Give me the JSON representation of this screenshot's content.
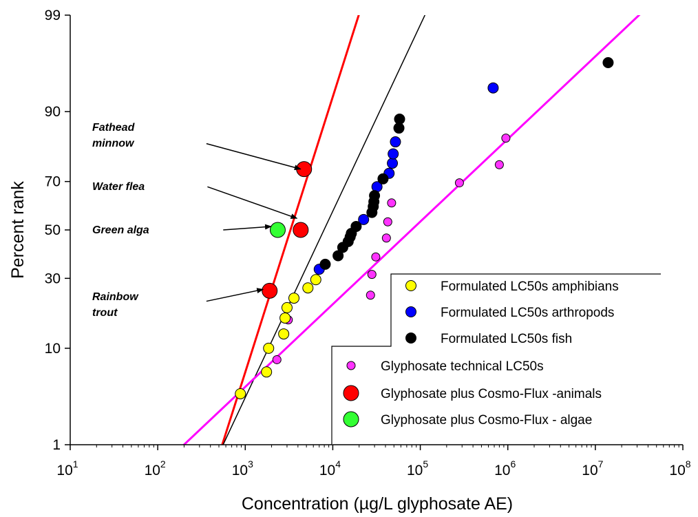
{
  "chart_data": {
    "type": "scatter",
    "xlabel": "Concentration (µg/L glyphosate AE)",
    "ylabel": "Percent rank",
    "xscale": "log",
    "yscale": "probit",
    "xlim": [
      10,
      100000000
    ],
    "ylim": [
      1,
      99
    ],
    "x_ticks": [
      {
        "value": 10,
        "base": "10",
        "exp": "1"
      },
      {
        "value": 100,
        "base": "10",
        "exp": "2"
      },
      {
        "value": 1000,
        "base": "10",
        "exp": "3"
      },
      {
        "value": 10000,
        "base": "10",
        "exp": "4"
      },
      {
        "value": 100000,
        "base": "10",
        "exp": "5"
      },
      {
        "value": 1000000,
        "base": "10",
        "exp": "6"
      },
      {
        "value": 10000000,
        "base": "10",
        "exp": "7"
      },
      {
        "value": 100000000,
        "base": "10",
        "exp": "8"
      }
    ],
    "y_ticks": [
      {
        "value": 1,
        "label": "1"
      },
      {
        "value": 10,
        "label": "10"
      },
      {
        "value": 30,
        "label": "30"
      },
      {
        "value": 50,
        "label": "50"
      },
      {
        "value": 70,
        "label": "70"
      },
      {
        "value": 90,
        "label": "90"
      },
      {
        "value": 99,
        "label": "99"
      }
    ],
    "grid": false,
    "legend_position": "bottom-right",
    "series": [
      {
        "name": "Formulated LC50s amphibians",
        "color": "#ffff00",
        "marker": "small",
        "points": [
          [
            880,
            3.8
          ],
          [
            1750,
            6.2
          ],
          [
            1850,
            10.0
          ],
          [
            2750,
            13.0
          ],
          [
            2850,
            17.0
          ],
          [
            3000,
            20.0
          ],
          [
            3600,
            23.0
          ],
          [
            5200,
            26.5
          ],
          [
            6400,
            29.5
          ]
        ]
      },
      {
        "name": "Formulated LC50s arthropods",
        "color": "#0000ff",
        "marker": "small",
        "points": [
          [
            7000,
            33.5
          ],
          [
            22500,
            54.5
          ],
          [
            32000,
            68.0
          ],
          [
            44000,
            73.0
          ],
          [
            48000,
            76.5
          ],
          [
            49000,
            79.5
          ],
          [
            52000,
            83.0
          ],
          [
            680000,
            93.8
          ]
        ]
      },
      {
        "name": "Formulated LC50s fish",
        "color": "#000000",
        "marker": "small",
        "points": [
          [
            8200,
            35.5
          ],
          [
            11500,
            39.0
          ],
          [
            13000,
            42.5
          ],
          [
            15000,
            45.0
          ],
          [
            15800,
            47.0
          ],
          [
            16300,
            48.5
          ],
          [
            18500,
            51.5
          ],
          [
            28000,
            57.5
          ],
          [
            29000,
            60.0
          ],
          [
            29500,
            62.0
          ],
          [
            30000,
            64.5
          ],
          [
            37500,
            71.0
          ],
          [
            57000,
            86.5
          ],
          [
            58000,
            88.5
          ],
          [
            14000000,
            96.5
          ]
        ]
      },
      {
        "name": "Glyphosate technical LC50s",
        "color": "#ff33ff",
        "marker": "tiny",
        "points": [
          [
            2300,
            8.0
          ],
          [
            3100,
            16.5
          ],
          [
            27000,
            24.0
          ],
          [
            28000,
            31.5
          ],
          [
            31000,
            38.5
          ],
          [
            41000,
            46.5
          ],
          [
            42500,
            53.5
          ],
          [
            47000,
            61.5
          ],
          [
            280000,
            69.5
          ],
          [
            800000,
            76.0
          ],
          [
            950000,
            84.0
          ]
        ]
      },
      {
        "name": "Glyphosate plus Cosmo-Flux -animals",
        "color": "#ff0000",
        "marker": "large",
        "points": [
          [
            1900,
            25.5
          ],
          [
            4300,
            50.0
          ],
          [
            4700,
            74.5
          ]
        ]
      },
      {
        "name": "Glyphosate plus Cosmo-Flux - algae",
        "color": "#33ff33",
        "marker": "large",
        "points": [
          [
            2350,
            50.0
          ]
        ]
      }
    ],
    "fitted_lines": [
      {
        "color": "#ff0000",
        "width": 3,
        "points": [
          [
            450,
            0.5
          ],
          [
            24000,
            99.5
          ]
        ]
      },
      {
        "color": "#000000",
        "width": 1.5,
        "points": [
          [
            420,
            0.5
          ],
          [
            150000,
            99.5
          ]
        ]
      },
      {
        "color": "#ff00ff",
        "width": 3,
        "points": [
          [
            105,
            0.5
          ],
          [
            60000000,
            99.5
          ]
        ]
      }
    ],
    "annotations": [
      {
        "text_lines": [
          "Fathead",
          "minnow"
        ],
        "arrow_from": {
          "x": 360,
          "y": 82.5
        },
        "arrow_to": {
          "x": 4300,
          "y": 74.5
        }
      },
      {
        "text_lines": [
          "Water flea"
        ],
        "arrow_from": {
          "x": 370,
          "y": 68.0
        },
        "arrow_to": {
          "x": 3900,
          "y": 55.0
        }
      },
      {
        "text_lines": [
          "Green alga"
        ],
        "arrow_from": {
          "x": 560,
          "y": 50.0
        },
        "arrow_to": {
          "x": 1980,
          "y": 51.5
        }
      },
      {
        "text_lines": [
          "Rainbow",
          "trout"
        ],
        "arrow_from": {
          "x": 360,
          "y": 22.0
        },
        "arrow_to": {
          "x": 1600,
          "y": 26.0
        }
      }
    ]
  }
}
